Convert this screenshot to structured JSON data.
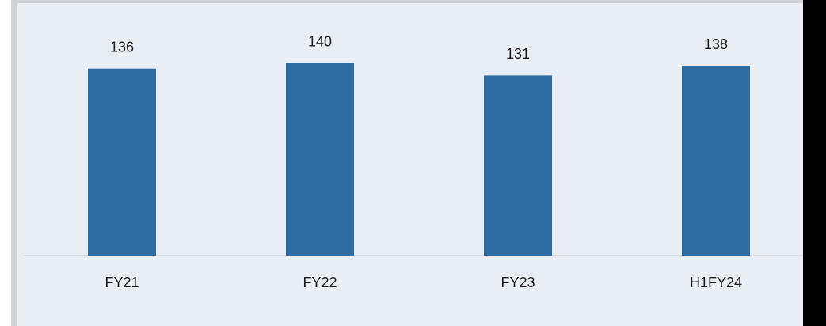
{
  "chart_data": {
    "type": "bar",
    "categories": [
      "FY21",
      "FY22",
      "FY23",
      "H1FY24"
    ],
    "values": [
      136,
      140,
      131,
      138
    ],
    "color": "#2e6ca4",
    "ylim": [
      0,
      160
    ],
    "grid": false
  }
}
